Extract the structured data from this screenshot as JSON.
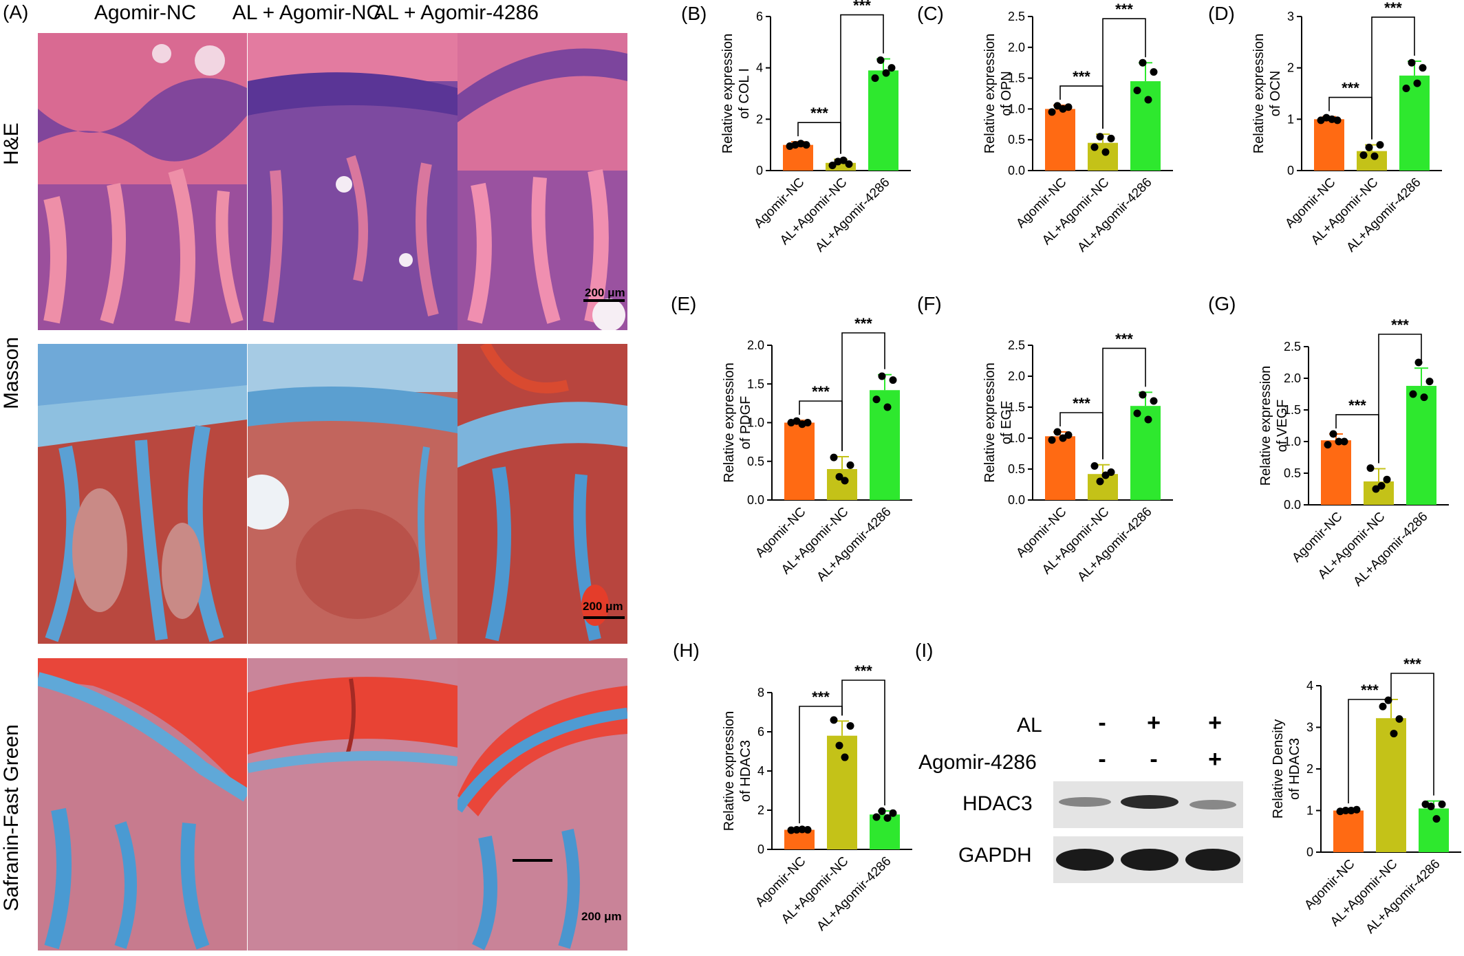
{
  "panel_a": {
    "letter": "(A)",
    "columns": [
      "Agomir-NC",
      "AL + Agomir-NC",
      "AL + Agomir-4286"
    ],
    "rows": [
      "H&E",
      "Masson",
      "Safranin-Fast  Green"
    ],
    "scale_label": "200 μm"
  },
  "panel_i": {
    "letter": "(I)",
    "row_labels": [
      "AL",
      "Agomir-4286"
    ],
    "al_signs": [
      "-",
      "+",
      "+"
    ],
    "agomir_signs": [
      "-",
      "-",
      "+"
    ],
    "bands": [
      "HDAC3",
      "GAPDH"
    ]
  },
  "colors": {
    "agomir_nc": "#ff6a13",
    "al_agomir_nc": "#c4c218",
    "al_agomir_4286": "#2ee82e"
  },
  "chart_data": [
    {
      "id": "B",
      "letter": "(B)",
      "type": "bar",
      "ylabel": [
        "Relative expression",
        "of COL I"
      ],
      "categories": [
        "Agomir-NC",
        "AL+Agomir-NC",
        "AL+Agomir-4286"
      ],
      "values": [
        1.0,
        0.3,
        3.9
      ],
      "errors": [
        0.12,
        0.14,
        0.45
      ],
      "points": [
        [
          0.95,
          1.0,
          1.05,
          1.0
        ],
        [
          0.2,
          0.35,
          0.4,
          0.25
        ],
        [
          3.6,
          4.3,
          3.8,
          4.0
        ]
      ],
      "ylim": [
        0,
        6
      ],
      "yticks": [
        0,
        2,
        4,
        6
      ],
      "significance": [
        {
          "from": 0,
          "to": 1,
          "label": "***"
        },
        {
          "from": 1,
          "to": 2,
          "label": "***"
        }
      ]
    },
    {
      "id": "C",
      "letter": "(C)",
      "type": "bar",
      "ylabel": [
        "Relative expression",
        "of OPN"
      ],
      "categories": [
        "Agomir-NC",
        "AL+Agomir-NC",
        "AL+Agomir-4286"
      ],
      "values": [
        1.0,
        0.45,
        1.45
      ],
      "errors": [
        0.06,
        0.14,
        0.3
      ],
      "points": [
        [
          0.95,
          1.05,
          1.0,
          1.03
        ],
        [
          0.38,
          0.55,
          0.3,
          0.52
        ],
        [
          1.3,
          1.75,
          1.15,
          1.6
        ]
      ],
      "ylim": [
        0,
        2.5
      ],
      "yticks": [
        0.0,
        0.5,
        1.0,
        1.5,
        2.0,
        2.5
      ],
      "significance": [
        {
          "from": 0,
          "to": 1,
          "label": "***"
        },
        {
          "from": 1,
          "to": 2,
          "label": "***"
        }
      ]
    },
    {
      "id": "D",
      "letter": "(D)",
      "type": "bar",
      "ylabel": [
        "Relative expression",
        "of OCN"
      ],
      "categories": [
        "Agomir-NC",
        "AL+Agomir-NC",
        "AL+Agomir-4286"
      ],
      "values": [
        1.0,
        0.38,
        1.85
      ],
      "errors": [
        0.05,
        0.12,
        0.28
      ],
      "points": [
        [
          0.98,
          1.03,
          1.0,
          0.98
        ],
        [
          0.3,
          0.45,
          0.28,
          0.5
        ],
        [
          1.6,
          2.1,
          1.7,
          2.0
        ]
      ],
      "ylim": [
        0,
        3
      ],
      "yticks": [
        0,
        1,
        2,
        3
      ],
      "significance": [
        {
          "from": 0,
          "to": 1,
          "label": "***"
        },
        {
          "from": 1,
          "to": 2,
          "label": "***"
        }
      ]
    },
    {
      "id": "E",
      "letter": "(E)",
      "type": "bar",
      "ylabel": [
        "Relative expression",
        "of PDGF"
      ],
      "categories": [
        "Agomir-NC",
        "AL+Agomir-NC",
        "AL+Agomir-4286"
      ],
      "values": [
        1.0,
        0.4,
        1.42
      ],
      "errors": [
        0.03,
        0.16,
        0.2
      ],
      "points": [
        [
          1.0,
          1.02,
          0.98,
          1.0
        ],
        [
          0.55,
          0.3,
          0.25,
          0.45
        ],
        [
          1.3,
          1.6,
          1.2,
          1.55
        ]
      ],
      "ylim": [
        0,
        2.0
      ],
      "yticks": [
        0.0,
        0.5,
        1.0,
        1.5,
        2.0
      ],
      "significance": [
        {
          "from": 0,
          "to": 1,
          "label": "***"
        },
        {
          "from": 1,
          "to": 2,
          "label": "***"
        }
      ]
    },
    {
      "id": "F",
      "letter": "(F)",
      "type": "bar",
      "ylabel": [
        "Relative expression",
        "of EGF"
      ],
      "categories": [
        "Agomir-NC",
        "AL+Agomir-NC",
        "AL+Agomir-4286"
      ],
      "values": [
        1.03,
        0.42,
        1.52
      ],
      "errors": [
        0.07,
        0.15,
        0.22
      ],
      "points": [
        [
          0.97,
          1.1,
          1.0,
          1.05
        ],
        [
          0.55,
          0.3,
          0.4,
          0.45
        ],
        [
          1.4,
          1.7,
          1.3,
          1.6
        ]
      ],
      "ylim": [
        0,
        2.5
      ],
      "yticks": [
        0.0,
        0.5,
        1.0,
        1.5,
        2.0,
        2.5
      ],
      "significance": [
        {
          "from": 0,
          "to": 1,
          "label": "***"
        },
        {
          "from": 1,
          "to": 2,
          "label": "***"
        }
      ]
    },
    {
      "id": "G",
      "letter": "(G)",
      "type": "bar",
      "ylabel": [
        "Relative expression",
        "of VEGF"
      ],
      "categories": [
        "Agomir-NC",
        "AL+Agomir-NC",
        "AL+Agomir-4286"
      ],
      "values": [
        1.02,
        0.37,
        1.88
      ],
      "errors": [
        0.1,
        0.2,
        0.28
      ],
      "points": [
        [
          0.95,
          1.12,
          1.0,
          1.0
        ],
        [
          0.58,
          0.25,
          0.3,
          0.4
        ],
        [
          1.75,
          2.25,
          1.7,
          1.95
        ]
      ],
      "ylim": [
        0,
        2.5
      ],
      "yticks": [
        0.0,
        0.5,
        1.0,
        1.5,
        2.0,
        2.5
      ],
      "significance": [
        {
          "from": 0,
          "to": 1,
          "label": "***"
        },
        {
          "from": 1,
          "to": 2,
          "label": "***"
        }
      ]
    },
    {
      "id": "H",
      "letter": "(H)",
      "type": "bar",
      "ylabel": [
        "Relative expression",
        "of HDAC3"
      ],
      "categories": [
        "Agomir-NC",
        "AL+Agomir-NC",
        "AL+Agomir-4286"
      ],
      "values": [
        1.0,
        5.8,
        1.78
      ],
      "errors": [
        0.05,
        0.75,
        0.18
      ],
      "points": [
        [
          0.98,
          1.0,
          1.02,
          1.0
        ],
        [
          6.6,
          5.3,
          4.7,
          6.3
        ],
        [
          1.65,
          1.95,
          1.6,
          1.85
        ]
      ],
      "ylim": [
        0,
        8
      ],
      "yticks": [
        0,
        2,
        4,
        6,
        8
      ],
      "significance": [
        {
          "from": 0,
          "to": 1,
          "label": "***"
        },
        {
          "from": 1,
          "to": 2,
          "label": "***"
        }
      ]
    },
    {
      "id": "I2",
      "letter": "",
      "type": "bar",
      "ylabel": [
        "Relative Density",
        "of HDAC3"
      ],
      "categories": [
        "Agomir-NC",
        "AL+Agomir-NC",
        "AL+Agomir-4286"
      ],
      "values": [
        1.0,
        3.22,
        1.05
      ],
      "errors": [
        0.04,
        0.45,
        0.18
      ],
      "points": [
        [
          0.98,
          1.0,
          1.0,
          1.02
        ],
        [
          3.5,
          3.65,
          2.85,
          3.2
        ],
        [
          1.15,
          1.1,
          0.8,
          1.15
        ]
      ],
      "ylim": [
        0,
        4
      ],
      "yticks": [
        0,
        1,
        2,
        3,
        4
      ],
      "significance": [
        {
          "from": 0,
          "to": 1,
          "label": "***"
        },
        {
          "from": 1,
          "to": 2,
          "label": "***"
        }
      ]
    }
  ]
}
